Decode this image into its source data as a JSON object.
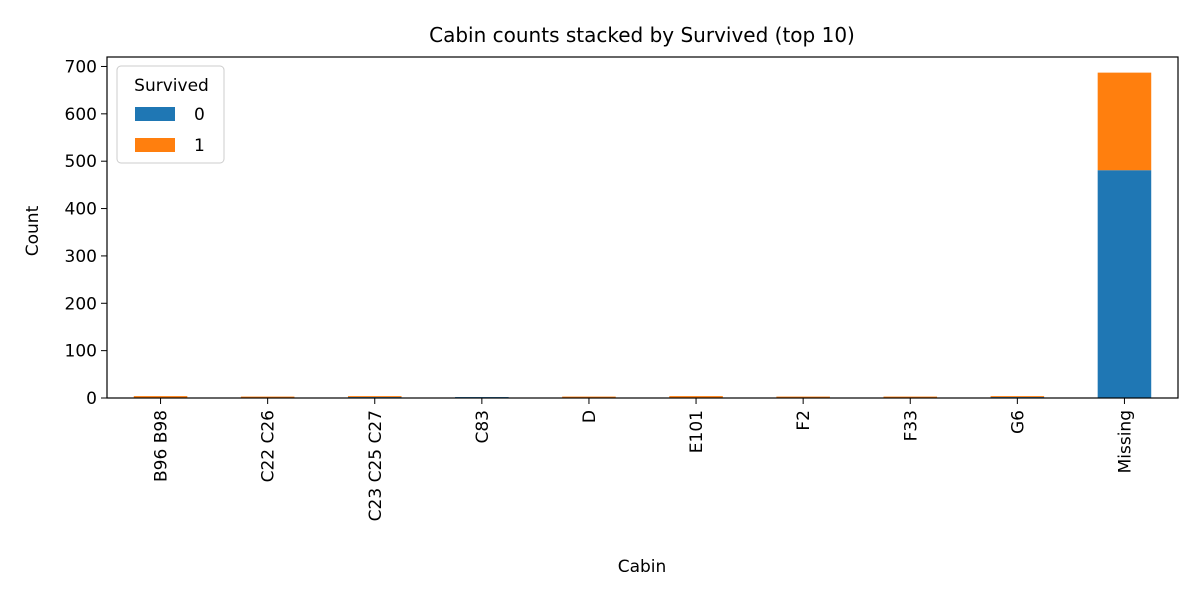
{
  "chart_data": {
    "type": "bar",
    "stacked": true,
    "title": "Cabin counts stacked by Survived (top 10)",
    "xlabel": "Cabin",
    "ylabel": "Count",
    "ylim": [
      0,
      720
    ],
    "yticks": [
      0,
      100,
      200,
      300,
      400,
      500,
      600,
      700
    ],
    "categories": [
      "B96 B98",
      "C22 C26",
      "C23 C25 C27",
      "C83",
      "D",
      "E101",
      "F2",
      "F33",
      "G6",
      "Missing"
    ],
    "series": [
      {
        "name": "0",
        "color": "#1f77b4",
        "values": [
          0,
          1,
          2,
          2,
          1,
          1,
          1,
          0,
          2,
          481
        ]
      },
      {
        "name": "1",
        "color": "#ff7f0e",
        "values": [
          4,
          2,
          2,
          0,
          2,
          3,
          2,
          3,
          2,
          206
        ]
      }
    ],
    "legend": {
      "title": "Survived",
      "position": "top-left"
    },
    "grid": false
  }
}
